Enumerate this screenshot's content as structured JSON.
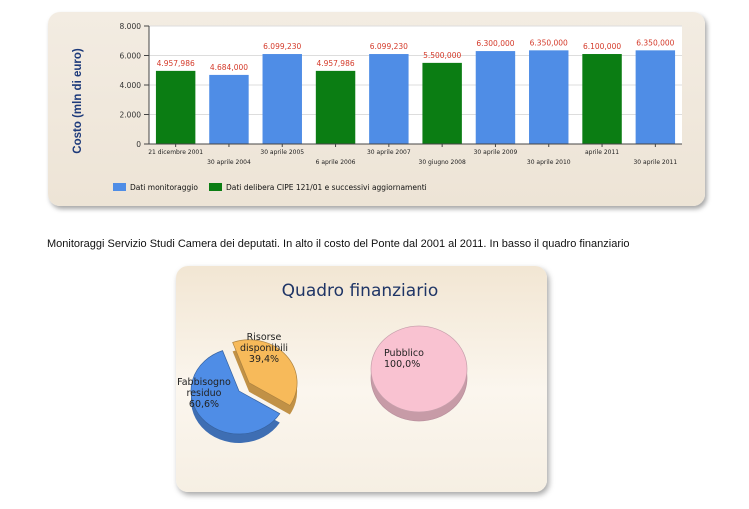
{
  "caption": "Monitoraggi Servizio Studi Camera dei deputati. In alto il costo del Ponte dal 2001 al 2011. In basso il quadro finanziario",
  "colors": {
    "blue": "#4f8de6",
    "green": "#0b7d13",
    "orange": "#f7ba5a",
    "pink": "#f9c2d1",
    "value_label": "#d43a2a"
  },
  "chart_data": [
    {
      "type": "bar",
      "ylabel": "Costo (mln di euro)",
      "ylim": [
        0,
        8000
      ],
      "yticks": [
        "0",
        "2.000",
        "4.000",
        "6.000",
        "8.000"
      ],
      "ytick_values": [
        0,
        2000,
        4000,
        6000,
        8000
      ],
      "grid": true,
      "legend_position": "bottom-left",
      "legend": [
        {
          "name": "Dati monitoraggio",
          "color": "#4f8de6"
        },
        {
          "name": "Dati delibera CIPE 121/01 e successivi aggiornamenti",
          "color": "#0b7d13"
        }
      ],
      "categories": [
        "21 dicembre 2001",
        "30 aprile 2004",
        "30 aprile 2005",
        "6 aprile 2006",
        "30 aprile 2007",
        "30 giugno 2008",
        "30 aprile 2009",
        "30 aprile 2010",
        "aprile 2011",
        "30 aprile 2011"
      ],
      "values": [
        4957.986,
        4684.0,
        6099.23,
        4957.986,
        6099.23,
        5500.0,
        6300.0,
        6350.0,
        6100.0,
        6350.0
      ],
      "value_labels": [
        "4.957,986",
        "4.684,000",
        "6.099,230",
        "4.957,986",
        "6.099,230",
        "5.500,000",
        "6.300,000",
        "6.350,000",
        "6.100,000",
        "6.350,000"
      ],
      "series_of_bar": [
        "green",
        "blue",
        "blue",
        "green",
        "blue",
        "green",
        "blue",
        "blue",
        "green",
        "blue"
      ]
    },
    {
      "type": "pie",
      "title": "Quadro finanziario",
      "pies": [
        {
          "slices": [
            {
              "label": "Risorse disponibili",
              "display_lines": [
                "Risorse",
                "disponibili",
                "39,4%"
              ],
              "value": 39.4,
              "color": "#f7ba5a",
              "exploded": true
            },
            {
              "label": "Fabbisogno residuo",
              "display_lines": [
                "Fabbisogno",
                "residuo",
                "60,6%"
              ],
              "value": 60.6,
              "color": "#4f8de6",
              "exploded": false
            }
          ]
        },
        {
          "slices": [
            {
              "label": "Pubblico",
              "display_lines": [
                "Pubblico",
                "100,0%"
              ],
              "value": 100.0,
              "color": "#f9c2d1",
              "exploded": false
            }
          ]
        }
      ]
    }
  ]
}
